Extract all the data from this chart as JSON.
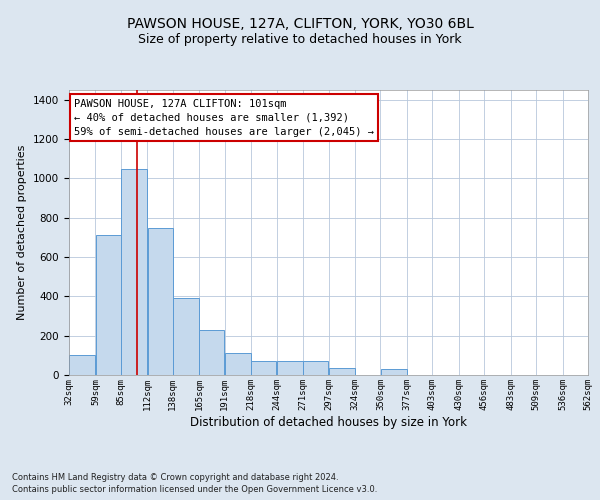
{
  "title": "PAWSON HOUSE, 127A, CLIFTON, YORK, YO30 6BL",
  "subtitle": "Size of property relative to detached houses in York",
  "xlabel": "Distribution of detached houses by size in York",
  "ylabel": "Number of detached properties",
  "footnote1": "Contains HM Land Registry data © Crown copyright and database right 2024.",
  "footnote2": "Contains public sector information licensed under the Open Government Licence v3.0.",
  "annotation_title": "PAWSON HOUSE, 127A CLIFTON: 101sqm",
  "annotation_line1": "← 40% of detached houses are smaller (1,392)",
  "annotation_line2": "59% of semi-detached houses are larger (2,045) →",
  "property_size": 101,
  "bar_edges": [
    32,
    59,
    85,
    112,
    138,
    165,
    191,
    218,
    244,
    271,
    297,
    324,
    350,
    377,
    403,
    430,
    456,
    483,
    509,
    536,
    562
  ],
  "bar_heights": [
    100,
    710,
    1050,
    750,
    390,
    230,
    110,
    70,
    70,
    70,
    35,
    0,
    30,
    0,
    0,
    0,
    0,
    0,
    0,
    0
  ],
  "bar_color": "#c5d9ed",
  "bar_edge_color": "#5b9bd5",
  "line_color": "#cc0000",
  "ylim": [
    0,
    1450
  ],
  "yticks": [
    0,
    200,
    400,
    600,
    800,
    1000,
    1200,
    1400
  ],
  "bg_color": "#dce6f0",
  "plot_bg_color": "#ffffff",
  "grid_color": "#b8c8dc",
  "title_fontsize": 10,
  "subtitle_fontsize": 9,
  "annotation_box_color": "#ffffff",
  "annotation_box_edge": "#cc0000"
}
